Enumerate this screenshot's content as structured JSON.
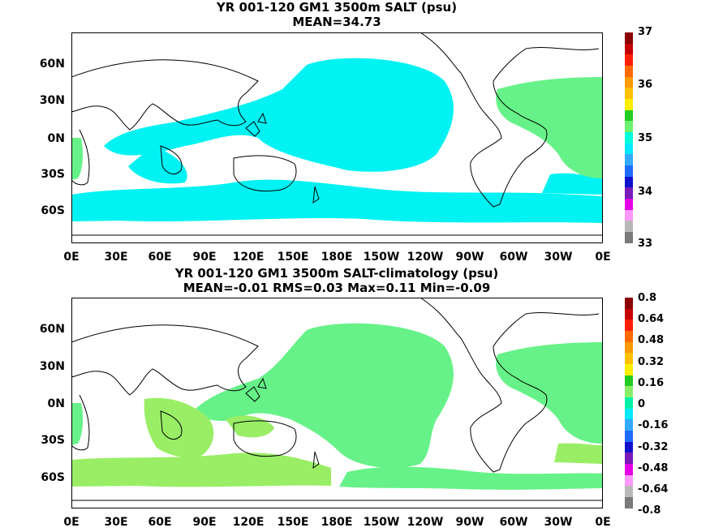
{
  "panel1": {
    "title": "YR 001-120 GM1 3500m SALT (psu)",
    "subtitle": "MEAN=34.73",
    "lat_labels": [
      "60N",
      "30N",
      "0N",
      "30S",
      "60S"
    ],
    "lon_labels": [
      "0E",
      "30E",
      "60E",
      "90E",
      "120E",
      "150E",
      "180E",
      "150W",
      "120W",
      "90W",
      "60W",
      "30W",
      "0E"
    ],
    "colorbar_labels": [
      "37",
      "36",
      "35",
      "34",
      "33"
    ],
    "colorbar_colors": [
      "#8b0000",
      "#c40000",
      "#ff2000",
      "#ff6a00",
      "#ff9a00",
      "#ffc000",
      "#ffee00",
      "#22cc22",
      "#6df26d",
      "#00ffdd",
      "#00eaff",
      "#33aaff",
      "#1f6bff",
      "#1111cc",
      "#7a1ab8",
      "#e600e6",
      "#ff99ff",
      "#b8b8b8",
      "#7a7a7a"
    ],
    "ocean_fill": "#00f2f2",
    "atlantic_fill": "#66f288"
  },
  "panel2": {
    "title": "YR 001-120 GM1 3500m SALT-climatology (psu)",
    "subtitle": "MEAN=-0.01   RMS=0.03   Max=0.11   Min=-0.09",
    "lat_labels": [
      "60N",
      "30N",
      "0N",
      "30S",
      "60S"
    ],
    "lon_labels": [
      "0E",
      "30E",
      "60E",
      "90E",
      "120E",
      "150E",
      "180E",
      "150W",
      "120W",
      "90W",
      "60W",
      "30W",
      "0E"
    ],
    "colorbar_labels": [
      "0.8",
      "0.64",
      "0.48",
      "0.32",
      "0.16",
      "0",
      "-0.16",
      "-0.32",
      "-0.48",
      "-0.64",
      "-0.8"
    ],
    "colorbar_colors": [
      "#8b0000",
      "#c40000",
      "#ff2000",
      "#ff6a00",
      "#ff9a00",
      "#ffc000",
      "#ffee00",
      "#22cc22",
      "#88ee66",
      "#00f2aa",
      "#00eaff",
      "#33aaff",
      "#1f6bff",
      "#1111cc",
      "#7a1ab8",
      "#e600e6",
      "#ff99ff",
      "#b8b8b8",
      "#7a7a7a"
    ],
    "fill_main": "#66f288",
    "fill_alt": "#99ee66"
  }
}
